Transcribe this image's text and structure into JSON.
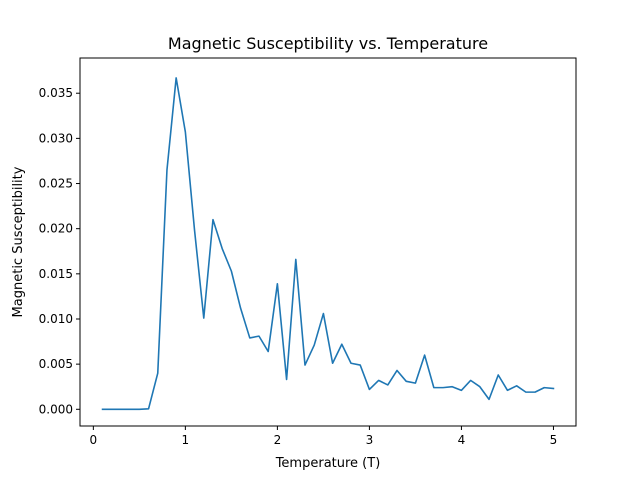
{
  "chart_data": {
    "type": "line",
    "title": "Magnetic Susceptibility vs. Temperature",
    "xlabel": "Temperature (T)",
    "ylabel": "Magnetic Susceptibility",
    "xlim": [
      -0.145,
      5.245
    ],
    "ylim": [
      -0.00185,
      0.0389
    ],
    "xticks": [
      0,
      1,
      2,
      3,
      4,
      5
    ],
    "xtick_labels": [
      "0",
      "1",
      "2",
      "3",
      "4",
      "5"
    ],
    "yticks": [
      0.0,
      0.005,
      0.01,
      0.015,
      0.02,
      0.025,
      0.03,
      0.035
    ],
    "ytick_labels": [
      "0.000",
      "0.005",
      "0.010",
      "0.015",
      "0.020",
      "0.025",
      "0.030",
      "0.035"
    ],
    "grid": false,
    "color": "#1f77b4",
    "x": [
      0.1,
      0.2,
      0.3,
      0.4,
      0.5,
      0.6,
      0.7,
      0.8,
      0.9,
      1.0,
      1.1,
      1.2,
      1.3,
      1.4,
      1.5,
      1.6,
      1.7,
      1.8,
      1.9,
      2.0,
      2.1,
      2.2,
      2.3,
      2.4,
      2.5,
      2.6,
      2.7,
      2.8,
      2.9,
      3.0,
      3.1,
      3.2,
      3.3,
      3.4,
      3.5,
      3.6,
      3.7,
      3.8,
      3.9,
      4.0,
      4.1,
      4.2,
      4.3,
      4.4,
      4.5,
      4.6,
      4.7,
      4.8,
      4.9,
      5.0
    ],
    "y": [
      0.0,
      0.0,
      0.0,
      0.0,
      0.0,
      5e-05,
      0.004,
      0.0265,
      0.0367,
      0.0307,
      0.0198,
      0.0101,
      0.021,
      0.0178,
      0.0153,
      0.0112,
      0.0079,
      0.0081,
      0.0064,
      0.0139,
      0.0033,
      0.0166,
      0.0049,
      0.0071,
      0.0106,
      0.0051,
      0.0072,
      0.0051,
      0.0049,
      0.0022,
      0.0032,
      0.0027,
      0.0043,
      0.0031,
      0.0029,
      0.006,
      0.0024,
      0.0024,
      0.0025,
      0.0021,
      0.0032,
      0.0025,
      0.0011,
      0.0038,
      0.0021,
      0.0026,
      0.0019,
      0.0019,
      0.0024,
      0.0023
    ]
  }
}
